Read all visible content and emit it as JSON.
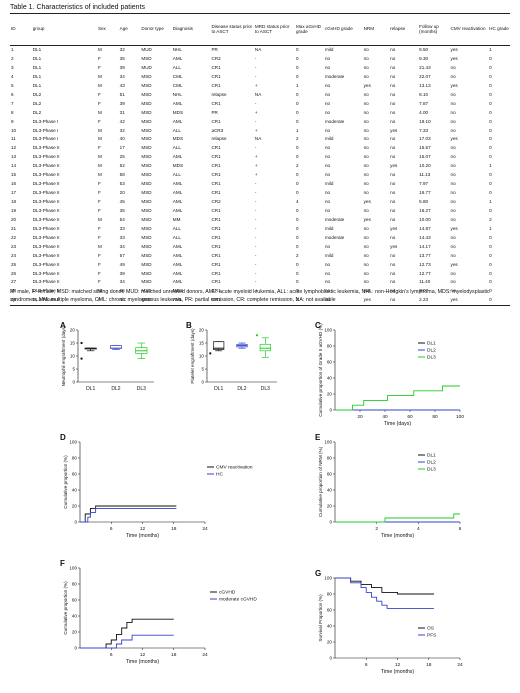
{
  "caption": "Table 1. Characteristics of included patients",
  "headers": [
    "ID",
    "group",
    "Sex",
    "Age",
    "Donor type",
    "Diagnosis",
    "Disease status prior to ASCT",
    "MRD status prior to ASCT",
    "Max aGvHD grade",
    "cGvHD grade",
    "NRM",
    "relapse",
    "Follow up (months)",
    "CMV reactivation",
    "HC grade"
  ],
  "rows": [
    [
      "1",
      "DL1",
      "M",
      "32",
      "MUD",
      "NHL",
      "PR",
      "NA",
      "0",
      "mild",
      "no",
      "no",
      "9.50",
      "yes",
      "1"
    ],
    [
      "2",
      "DL1",
      "F",
      "35",
      "MSD",
      "AML",
      "CR2",
      "-",
      "0",
      "no",
      "no",
      "no",
      "9.30",
      "yes",
      "0"
    ],
    [
      "3",
      "DL1",
      "F",
      "39",
      "MUD",
      "ALL",
      "CR1",
      "-",
      "0",
      "no",
      "no",
      "no",
      "21.43",
      "no",
      "0"
    ],
    [
      "4",
      "DL1",
      "M",
      "34",
      "MSD",
      "CML",
      "CR1",
      "-",
      "0",
      "moderate",
      "no",
      "no",
      "22.07",
      "no",
      "0"
    ],
    [
      "5",
      "DL1",
      "M",
      "43",
      "MSD",
      "CML",
      "CR1",
      "+",
      "1",
      "no",
      "yes",
      "no",
      "13.13",
      "yes",
      "0"
    ],
    [
      "6",
      "DL2",
      "F",
      "51",
      "MSD",
      "NHL",
      "relapse",
      "NA",
      "0",
      "no",
      "no",
      "no",
      "8.10",
      "no",
      "0"
    ],
    [
      "7",
      "DL2",
      "F",
      "39",
      "MSD",
      "AML",
      "CR1",
      "-",
      "0",
      "no",
      "no",
      "no",
      "7.87",
      "no",
      "0"
    ],
    [
      "8",
      "DL2",
      "M",
      "31",
      "MSD",
      "MDS",
      "PR",
      "+",
      "0",
      "no",
      "no",
      "no",
      "4.00",
      "no",
      "0"
    ],
    [
      "9",
      "DL3-Phase I",
      "F",
      "42",
      "MSD",
      "AML",
      "CR1",
      "-",
      "0",
      "moderate",
      "no",
      "no",
      "19.10",
      "no",
      "0"
    ],
    [
      "10",
      "DL3-Phase I",
      "M",
      "32",
      "MSD",
      "ALL",
      "≥CR3",
      "+",
      "1",
      "no",
      "no",
      "yes",
      "7.33",
      "no",
      "0"
    ],
    [
      "11",
      "DL3-Phase I",
      "M",
      "40",
      "MSD",
      "MDS",
      "relapse",
      "NA",
      "2",
      "mild",
      "no",
      "no",
      "17.03",
      "yes",
      "0"
    ],
    [
      "12",
      "DL3-Phase II",
      "F",
      "17",
      "MSD",
      "ALL",
      "CR1",
      "-",
      "0",
      "no",
      "no",
      "no",
      "15.57",
      "no",
      "0"
    ],
    [
      "13",
      "DL3-Phase II",
      "M",
      "25",
      "MSD",
      "AML",
      "CR1",
      "+",
      "0",
      "no",
      "no",
      "no",
      "15.07",
      "no",
      "0"
    ],
    [
      "14",
      "DL3-Phase II",
      "M",
      "52",
      "MSD",
      "MDS",
      "CR1",
      "+",
      "2",
      "no",
      "no",
      "yes",
      "10.20",
      "no",
      "1"
    ],
    [
      "15",
      "DL3-Phase II",
      "M",
      "58",
      "MSD",
      "ALL",
      "CR1",
      "+",
      "0",
      "no",
      "no",
      "no",
      "11.13",
      "no",
      "0"
    ],
    [
      "16",
      "DL3-Phase II",
      "F",
      "53",
      "MSD",
      "AML",
      "CR1",
      "-",
      "0",
      "mild",
      "no",
      "no",
      "7.97",
      "no",
      "0"
    ],
    [
      "17",
      "DL3-Phase II",
      "F",
      "20",
      "MSD",
      "AML",
      "CR1",
      "-",
      "0",
      "no",
      "no",
      "no",
      "16.77",
      "no",
      "0"
    ],
    [
      "18",
      "DL3-Phase II",
      "F",
      "45",
      "MSD",
      "AML",
      "CR2",
      "-",
      "4",
      "no",
      "yes",
      "no",
      "5.80",
      "no",
      "1"
    ],
    [
      "19",
      "DL3-Phase II",
      "F",
      "35",
      "MSD",
      "AML",
      "CR1",
      "-",
      "0",
      "no",
      "no",
      "no",
      "16.27",
      "no",
      "0"
    ],
    [
      "20",
      "DL3-Phase II",
      "M",
      "54",
      "MSD",
      "MM",
      "CR1",
      "-",
      "0",
      "moderate",
      "yes",
      "no",
      "10.00",
      "no",
      "2"
    ],
    [
      "21",
      "DL3-Phase II",
      "F",
      "33",
      "MSD",
      "ALL",
      "CR1",
      "-",
      "0",
      "mild",
      "no",
      "yes",
      "14.87",
      "yes",
      "1"
    ],
    [
      "22",
      "DL3-Phase II",
      "F",
      "33",
      "MSD",
      "ALL",
      "CR1",
      "-",
      "0",
      "moderate",
      "no",
      "no",
      "14.43",
      "no",
      "0"
    ],
    [
      "23",
      "DL3-Phase II",
      "M",
      "34",
      "MSD",
      "AML",
      "CR1",
      "-",
      "0",
      "no",
      "no",
      "yes",
      "14.17",
      "no",
      "0"
    ],
    [
      "24",
      "DL3-Phase II",
      "F",
      "57",
      "MSD",
      "AML",
      "CR1",
      "-",
      "2",
      "mild",
      "no",
      "no",
      "13.77",
      "no",
      "0"
    ],
    [
      "25",
      "DL3-Phase II",
      "F",
      "49",
      "MSD",
      "AML",
      "CR1",
      "-",
      "0",
      "no",
      "no",
      "no",
      "12.73",
      "yes",
      "0"
    ],
    [
      "26",
      "DL3-Phase II",
      "F",
      "39",
      "MSD",
      "AML",
      "CR1",
      "-",
      "0",
      "no",
      "no",
      "no",
      "12.77",
      "no",
      "0"
    ],
    [
      "27",
      "DL3-Phase II",
      "F",
      "34",
      "MSD",
      "AML",
      "CR1",
      "-",
      "0",
      "no",
      "no",
      "no",
      "11.40",
      "no",
      "0"
    ],
    [
      "28",
      "DL3-Phase II",
      "M",
      "65",
      "MSD",
      "MDS",
      "CR1",
      "+",
      "0",
      "no",
      "yes",
      "no",
      "9.07",
      "no",
      "0"
    ],
    [
      "29",
      "DL3-Phase II",
      "F",
      "40",
      "MSD",
      "AML",
      "CR1",
      "-",
      "2",
      "no",
      "yes",
      "no",
      "2.23",
      "yes",
      "0"
    ]
  ],
  "footnote": "M: male, F: female, MSD: matched sibling donor, MUD: matched unrelated donors, AML: acute myeloid leukemia, ALL: acute lymphoblastic leukemia, NHL: non-Hodgkin's lymphoma, MDS: myelodysplastic syndromes, MM: multiple myeloma, CML: chronic myelogenous leukemia, PR: partial remission, CR: complete remission, NA: not available",
  "colors": {
    "dl1": "#111111",
    "dl2": "#3344cc",
    "dl3": "#22cc22"
  },
  "chart_data": [
    {
      "panel": "A",
      "type": "box",
      "ylabel": "Neutrophil engraftment (days)",
      "categories": [
        "DL1",
        "DL2",
        "DL3"
      ],
      "ylim": [
        0,
        20
      ],
      "yticks": [
        0,
        5,
        10,
        15,
        20
      ],
      "boxes": [
        {
          "min": 12,
          "q1": 13,
          "median": 13,
          "q3": 13,
          "max": 13,
          "outliers": [
            15,
            9
          ]
        },
        {
          "min": 12.5,
          "q1": 13,
          "median": 13,
          "q3": 14,
          "max": 14
        },
        {
          "min": 9,
          "q1": 11,
          "median": 12,
          "q3": 13.2,
          "max": 15
        }
      ]
    },
    {
      "panel": "B",
      "type": "box",
      "ylabel": "Platelet engraftment (days)",
      "categories": [
        "DL1",
        "DL2",
        "DL3"
      ],
      "ylim": [
        0,
        20
      ],
      "yticks": [
        0,
        5,
        10,
        15,
        20
      ],
      "boxes": [
        {
          "min": 12,
          "q1": 12.5,
          "median": 13,
          "q3": 15.5,
          "max": 15.5,
          "outliers": [
            11
          ]
        },
        {
          "min": 13,
          "q1": 13.5,
          "median": 14,
          "q3": 14.5,
          "max": 15
        },
        {
          "min": 9.5,
          "q1": 12,
          "median": 13,
          "q3": 14.5,
          "max": 17,
          "outliers": [
            18
          ]
        }
      ]
    },
    {
      "panel": "C",
      "type": "line",
      "ylabel": "Cumulative proportion of Grade II aGVHD (%)",
      "xlabel": "Time (days)",
      "xlim": [
        0,
        100
      ],
      "ylim": [
        0,
        100
      ],
      "xticks": [
        20,
        40,
        60,
        80,
        100
      ],
      "yticks": [
        0,
        20,
        40,
        60,
        80,
        100
      ],
      "series": [
        {
          "name": "DL1",
          "values": [
            [
              0,
              0
            ],
            [
              100,
              0
            ]
          ]
        },
        {
          "name": "DL2",
          "values": [
            [
              0,
              0
            ],
            [
              100,
              0
            ]
          ]
        },
        {
          "name": "DL3",
          "values": [
            [
              0,
              0
            ],
            [
              14,
              0
            ],
            [
              14,
              6
            ],
            [
              23,
              6
            ],
            [
              23,
              12
            ],
            [
              42,
              12
            ],
            [
              42,
              18
            ],
            [
              63,
              18
            ],
            [
              63,
              24
            ],
            [
              86,
              24
            ],
            [
              86,
              30
            ],
            [
              100,
              30
            ]
          ]
        }
      ]
    },
    {
      "panel": "D",
      "type": "line",
      "ylabel": "Cumulative proportion (%)",
      "xlabel": "Time (months)",
      "xlim": [
        0,
        24
      ],
      "ylim": [
        0,
        100
      ],
      "xticks": [
        6,
        12,
        18,
        24
      ],
      "yticks": [
        0,
        20,
        40,
        60,
        80,
        100
      ],
      "series": [
        {
          "name": "CMV reactivation",
          "values": [
            [
              0,
              0
            ],
            [
              1,
              0
            ],
            [
              1,
              10
            ],
            [
              2,
              10
            ],
            [
              2,
              17
            ],
            [
              3,
              17
            ],
            [
              3,
              20
            ],
            [
              18.5,
              20
            ]
          ]
        },
        {
          "name": "HC",
          "values": [
            [
              0,
              0
            ],
            [
              1.5,
              0
            ],
            [
              1.5,
              6
            ],
            [
              2,
              6
            ],
            [
              2,
              12
            ],
            [
              3,
              12
            ],
            [
              3,
              17
            ],
            [
              18.5,
              17
            ]
          ]
        }
      ]
    },
    {
      "panel": "E",
      "type": "line",
      "ylabel": "Cumulative proportion of NRM (%)",
      "xlabel": "Time (months)",
      "xlim": [
        0,
        6
      ],
      "ylim": [
        0,
        100
      ],
      "xticks": [
        2,
        4,
        6
      ],
      "yticks": [
        0,
        20,
        40,
        60,
        80,
        100
      ],
      "series": [
        {
          "name": "DL1",
          "values": [
            [
              0,
              0
            ],
            [
              6,
              0
            ]
          ]
        },
        {
          "name": "DL2",
          "values": [
            [
              0,
              0
            ],
            [
              6,
              0
            ]
          ]
        },
        {
          "name": "DL3",
          "values": [
            [
              0,
              0
            ],
            [
              2.4,
              0
            ],
            [
              2.4,
              5
            ],
            [
              5.7,
              5
            ],
            [
              5.7,
              10
            ],
            [
              6,
              10
            ]
          ]
        }
      ]
    },
    {
      "panel": "F",
      "type": "line",
      "ylabel": "Cumulative proportion (%)",
      "xlabel": "Time (months)",
      "xlim": [
        0,
        24
      ],
      "ylim": [
        0,
        100
      ],
      "xticks": [
        6,
        12,
        18,
        24
      ],
      "yticks": [
        0,
        20,
        40,
        60,
        80,
        100
      ],
      "series": [
        {
          "name": "cGVHD",
          "values": [
            [
              0,
              0
            ],
            [
              5,
              0
            ],
            [
              5,
              5
            ],
            [
              6,
              5
            ],
            [
              6,
              10
            ],
            [
              7,
              10
            ],
            [
              7,
              17
            ],
            [
              8,
              17
            ],
            [
              8,
              25
            ],
            [
              9,
              25
            ],
            [
              9,
              32
            ],
            [
              10,
              32
            ],
            [
              10,
              36
            ],
            [
              18,
              36
            ]
          ]
        },
        {
          "name": "moderate cGVHD",
          "values": [
            [
              0,
              0
            ],
            [
              7,
              0
            ],
            [
              7,
              5
            ],
            [
              8,
              5
            ],
            [
              8,
              10
            ],
            [
              10,
              10
            ],
            [
              10,
              16
            ],
            [
              18,
              16
            ]
          ]
        }
      ]
    },
    {
      "panel": "G",
      "type": "line",
      "ylabel": "Survival Proportion (%)",
      "xlabel": "Time (months)",
      "xlim": [
        0,
        24
      ],
      "ylim": [
        0,
        100
      ],
      "xticks": [
        6,
        12,
        18,
        24
      ],
      "yticks": [
        0,
        20,
        40,
        60,
        80,
        100
      ],
      "series": [
        {
          "name": "OS",
          "values": [
            [
              0,
              100
            ],
            [
              3,
              100
            ],
            [
              3,
              96
            ],
            [
              5,
              96
            ],
            [
              5,
              92
            ],
            [
              7,
              92
            ],
            [
              7,
              88
            ],
            [
              9,
              88
            ],
            [
              9,
              82
            ],
            [
              12,
              82
            ],
            [
              12,
              80
            ],
            [
              19,
              80
            ]
          ]
        },
        {
          "name": "PFS",
          "values": [
            [
              0,
              100
            ],
            [
              3,
              100
            ],
            [
              3,
              94
            ],
            [
              5,
              94
            ],
            [
              5,
              88
            ],
            [
              6,
              88
            ],
            [
              6,
              82
            ],
            [
              7,
              82
            ],
            [
              7,
              76
            ],
            [
              8,
              76
            ],
            [
              8,
              71
            ],
            [
              9,
              71
            ],
            [
              9,
              66
            ],
            [
              10,
              66
            ],
            [
              10,
              62
            ],
            [
              19,
              62
            ]
          ]
        }
      ]
    }
  ]
}
